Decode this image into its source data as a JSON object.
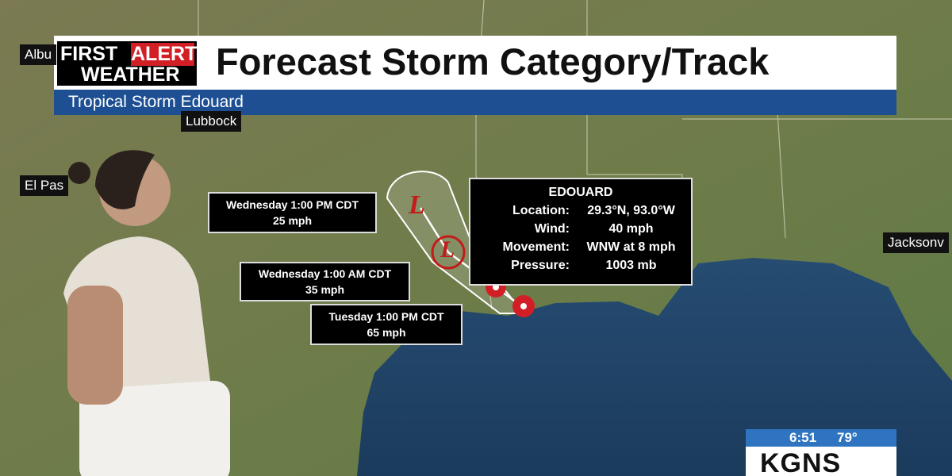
{
  "header": {
    "logo": {
      "first": "FIRST",
      "alert": "ALERT",
      "weather": "WEATHER"
    },
    "title": "Forecast Storm Category/Track",
    "subtitle": "Tropical Storm Edouard"
  },
  "map_labels": [
    "Albu",
    "Lubbock",
    "El Pas",
    "Jacksonv"
  ],
  "forecast_points": [
    {
      "time": "Wednesday 1:00 PM CDT",
      "wind": "25 mph"
    },
    {
      "time": "Wednesday 1:00 AM CDT",
      "wind": "35 mph"
    },
    {
      "time": "Tuesday 1:00 PM CDT",
      "wind": "65 mph"
    }
  ],
  "track_symbols": [
    "L",
    "L"
  ],
  "info_box": {
    "name": "EDOUARD",
    "rows": [
      [
        "Location:",
        "29.3°N, 93.0°W"
      ],
      [
        "Wind:",
        "40 mph"
      ],
      [
        "Movement:",
        "WNW at 8 mph"
      ],
      [
        "Pressure:",
        "1003 mb"
      ]
    ]
  },
  "bug": {
    "time": "6:51",
    "temp": "79°",
    "station": "KGNS"
  }
}
